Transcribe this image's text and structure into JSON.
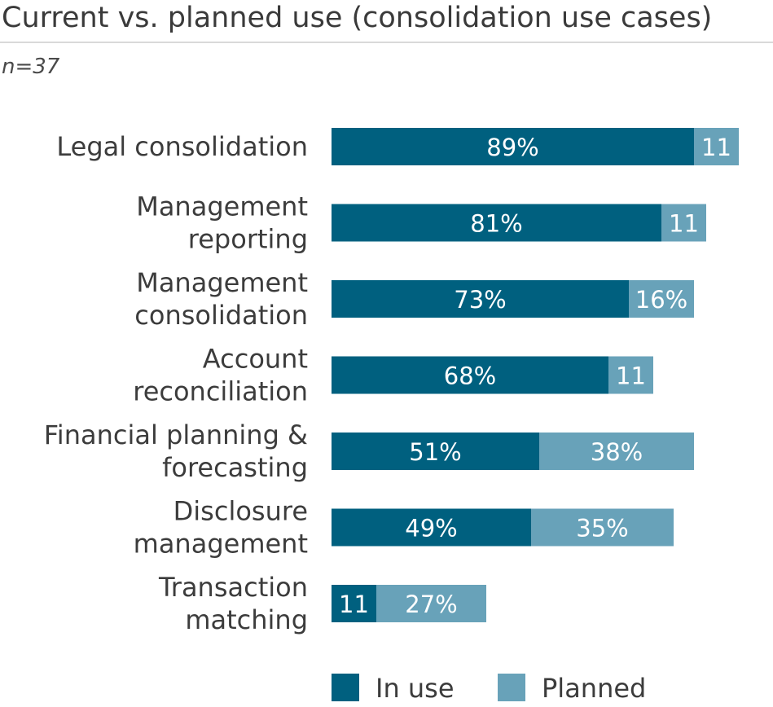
{
  "chart_data": {
    "type": "bar",
    "orientation": "horizontal",
    "stacked": true,
    "title": "Current vs. planned use (consolidation use cases)",
    "subtitle": "n=37",
    "categories": [
      [
        "Legal consolidation"
      ],
      [
        "Management",
        "reporting"
      ],
      [
        "Management",
        "consolidation"
      ],
      [
        "Account",
        "reconciliation"
      ],
      [
        "Financial planning &",
        "forecasting"
      ],
      [
        "Disclosure",
        "management"
      ],
      [
        "Transaction",
        "matching"
      ]
    ],
    "series": [
      {
        "name": "In use",
        "color": "#00607f",
        "values": [
          89,
          81,
          73,
          68,
          51,
          49,
          11
        ],
        "labels": [
          "89%",
          "81%",
          "73%",
          "68%",
          "51%",
          "49%",
          "11"
        ]
      },
      {
        "name": "Planned",
        "color": "#68a2b9",
        "values": [
          11,
          11,
          16,
          11,
          38,
          35,
          27
        ],
        "labels": [
          "11",
          "11",
          "16%",
          "11",
          "38%",
          "35%",
          "27%"
        ]
      }
    ],
    "xlim": [
      0,
      100
    ],
    "grid": false,
    "legend_position": "bottom"
  }
}
